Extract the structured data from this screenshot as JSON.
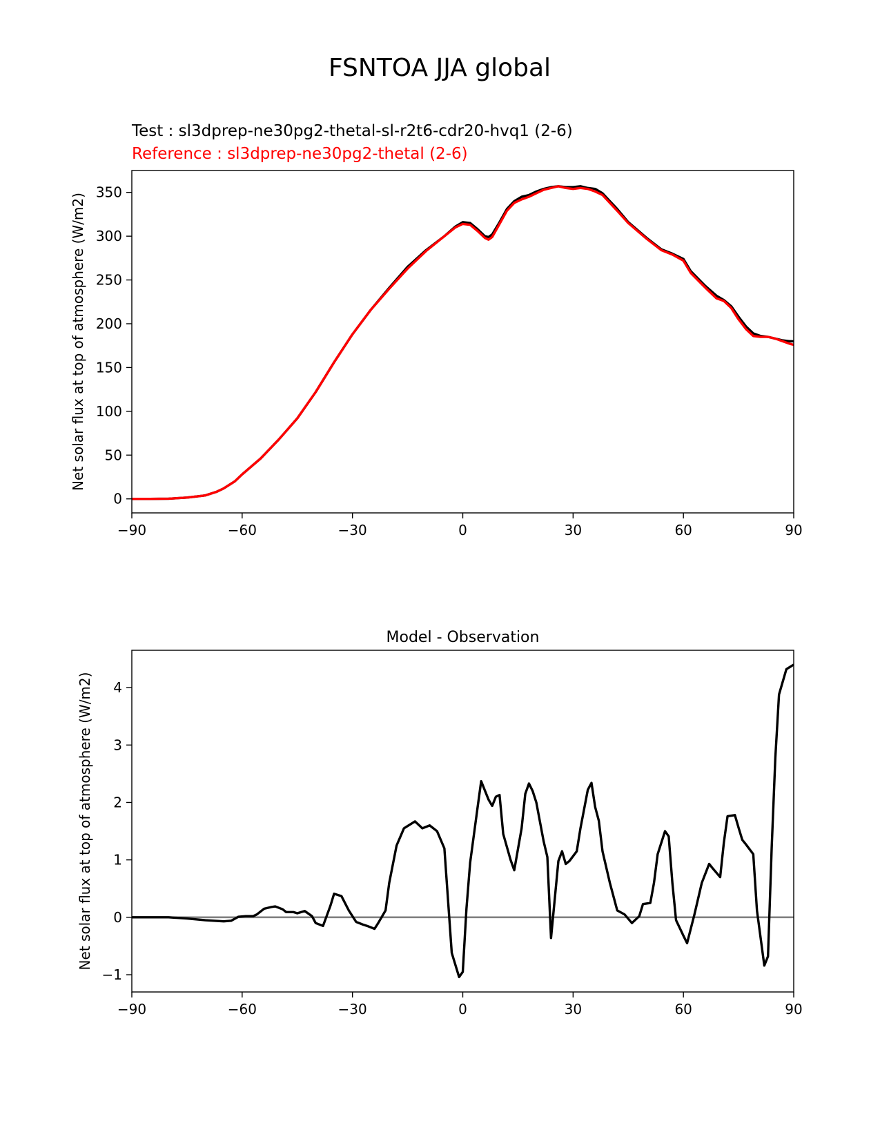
{
  "figure": {
    "title": "FSNTOA JJA global",
    "test_label": "Test : sl3dprep-ne30pg2-thetal-sl-r2t6-cdr20-hvq1 (2-6)",
    "reference_label": "Reference : sl3dprep-ne30pg2-thetal (2-6)",
    "test_color": "#000000",
    "reference_color": "#ff0000",
    "zero_line_color": "#808080"
  },
  "chart_data": [
    {
      "type": "line",
      "title": "",
      "xlabel": "",
      "ylabel": "Net solar flux at top of atmosphere (W/m2)",
      "xlim": [
        -90,
        90
      ],
      "ylim": [
        -16,
        375
      ],
      "xticks": [
        -90,
        -60,
        -30,
        0,
        30,
        60,
        90
      ],
      "xtick_labels": [
        "−90",
        "−60",
        "−30",
        "0",
        "30",
        "60",
        "90"
      ],
      "yticks": [
        0,
        50,
        100,
        150,
        200,
        250,
        300,
        350
      ],
      "ytick_labels": [
        "0",
        "50",
        "100",
        "150",
        "200",
        "250",
        "300",
        "350"
      ],
      "grid": false,
      "series": [
        {
          "name": "Test",
          "color": "#000000",
          "x": [
            -90,
            -85,
            -80,
            -75,
            -70,
            -67,
            -65,
            -62,
            -60,
            -55,
            -50,
            -45,
            -40,
            -35,
            -30,
            -25,
            -20,
            -15,
            -10,
            -5,
            -2,
            0,
            2,
            4,
            6,
            7,
            8,
            10,
            12,
            14,
            16,
            18,
            20,
            22,
            24,
            26,
            28,
            30,
            32,
            34,
            36,
            38,
            40,
            42,
            45,
            50,
            54,
            57,
            60,
            62,
            66,
            69,
            71,
            73,
            75,
            77,
            79,
            81,
            83,
            85,
            87,
            89,
            90
          ],
          "values": [
            0,
            0,
            0.2,
            1.5,
            4,
            8,
            12,
            20,
            28,
            46,
            68,
            92,
            122,
            156,
            188,
            216,
            241,
            265,
            284,
            300,
            311,
            316,
            315,
            308,
            300,
            299,
            302,
            316,
            331,
            340,
            345,
            347,
            351,
            354,
            356,
            357,
            356,
            356,
            357,
            355,
            354,
            349,
            340,
            331,
            316,
            298,
            285,
            280,
            274,
            260,
            243,
            232,
            227,
            220,
            208,
            197,
            189,
            186,
            185,
            183,
            181,
            180,
            180
          ]
        },
        {
          "name": "Reference",
          "color": "#ff0000",
          "x": [
            -90,
            -85,
            -80,
            -75,
            -70,
            -67,
            -65,
            -62,
            -60,
            -55,
            -50,
            -45,
            -40,
            -35,
            -30,
            -25,
            -20,
            -15,
            -10,
            -5,
            -2,
            0,
            2,
            4,
            6,
            7,
            8,
            10,
            12,
            14,
            16,
            18,
            20,
            22,
            24,
            26,
            28,
            30,
            32,
            34,
            36,
            38,
            40,
            42,
            45,
            50,
            54,
            57,
            60,
            62,
            66,
            69,
            71,
            73,
            75,
            77,
            79,
            81,
            83,
            85,
            87,
            89,
            90
          ],
          "values": [
            0,
            0,
            0.2,
            1.5,
            4,
            8,
            12,
            20,
            28,
            46,
            68,
            92,
            122,
            156,
            188,
            216,
            240,
            263,
            283,
            300,
            310,
            314,
            313,
            306,
            298,
            296,
            299,
            314,
            329,
            338,
            342,
            345,
            349,
            353,
            355,
            357,
            355,
            354,
            355,
            354,
            351,
            347,
            338,
            329,
            315,
            297,
            284,
            279,
            272,
            258,
            241,
            229,
            226,
            218,
            205,
            194,
            186,
            185,
            185,
            183,
            180,
            177,
            176
          ]
        }
      ]
    },
    {
      "type": "line",
      "title": "Model - Observation",
      "xlabel": "",
      "ylabel": "Net solar flux at top of atmosphere (W/m2)",
      "xlim": [
        -90,
        90
      ],
      "ylim": [
        -1.3,
        4.65
      ],
      "xticks": [
        -90,
        -60,
        -30,
        0,
        30,
        60,
        90
      ],
      "xtick_labels": [
        "−90",
        "−60",
        "−30",
        "0",
        "30",
        "60",
        "90"
      ],
      "yticks": [
        -1,
        0,
        1,
        2,
        3,
        4
      ],
      "ytick_labels": [
        "−1",
        "0",
        "1",
        "2",
        "3",
        "4"
      ],
      "grid": false,
      "zero_line": 0,
      "series": [
        {
          "name": "Model - Observation",
          "color": "#000000",
          "x": [
            -90,
            -80,
            -75,
            -70,
            -65,
            -63,
            -61,
            -59,
            -57,
            -56,
            -54,
            -52,
            -51,
            -49,
            -48,
            -46,
            -45,
            -43,
            -41,
            -40,
            -38,
            -36,
            -35,
            -33,
            -31,
            -29,
            -27,
            -26,
            -24,
            -23,
            -21,
            -20,
            -18,
            -16,
            -13,
            -11,
            -9,
            -7,
            -5,
            -3,
            -1,
            0,
            1,
            2,
            4,
            5,
            7,
            8,
            9,
            10,
            11,
            13,
            14,
            16,
            17,
            18,
            19,
            20,
            22,
            23,
            24,
            26,
            27,
            28,
            29,
            31,
            32,
            34,
            35,
            36,
            37,
            38,
            40,
            42,
            44,
            46,
            48,
            49,
            51,
            52,
            53,
            55,
            56,
            57,
            58,
            60,
            61,
            63,
            65,
            67,
            68,
            70,
            71,
            72,
            74,
            75,
            76,
            77,
            79,
            80,
            82,
            83,
            84,
            85,
            86,
            87,
            88,
            89,
            90
          ],
          "values": [
            0,
            0,
            -0.02,
            -0.05,
            -0.07,
            -0.06,
            0.01,
            0.02,
            0.02,
            0.05,
            0.15,
            0.18,
            0.19,
            0.14,
            0.09,
            0.09,
            0.07,
            0.11,
            0.02,
            -0.1,
            -0.15,
            0.2,
            0.41,
            0.37,
            0.12,
            -0.08,
            -0.13,
            -0.15,
            -0.2,
            -0.1,
            0.12,
            0.6,
            1.25,
            1.55,
            1.67,
            1.55,
            1.6,
            1.5,
            1.2,
            -0.62,
            -1.04,
            -0.95,
            0.15,
            0.95,
            1.9,
            2.37,
            2.05,
            1.94,
            2.1,
            2.13,
            1.45,
            1.0,
            0.82,
            1.55,
            2.15,
            2.33,
            2.2,
            2.0,
            1.32,
            1.05,
            -0.36,
            0.98,
            1.15,
            0.93,
            0.98,
            1.15,
            1.55,
            2.22,
            2.34,
            1.92,
            1.68,
            1.15,
            0.6,
            0.12,
            0.05,
            -0.1,
            0.02,
            0.23,
            0.25,
            0.6,
            1.1,
            1.5,
            1.41,
            0.6,
            -0.05,
            -0.32,
            -0.45,
            0.05,
            0.6,
            0.93,
            0.85,
            0.7,
            1.3,
            1.76,
            1.78,
            1.56,
            1.35,
            1.27,
            1.1,
            0.12,
            -0.84,
            -0.68,
            1.2,
            2.78,
            3.88,
            4.1,
            4.32,
            4.36,
            4.4
          ]
        }
      ]
    }
  ]
}
